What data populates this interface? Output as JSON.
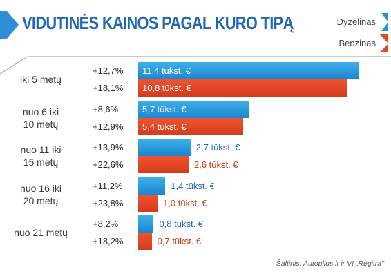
{
  "chart_data": {
    "type": "bar",
    "orientation": "horizontal",
    "title": "VIDUTINĖS KAINOS PAGAL KURO TIPĄ",
    "categories": [
      "iki 5 metų",
      "nuo 6 iki\n10 metų",
      "nuo 11 iki\n15 metų",
      "nuo 16 iki\n20 metų",
      "nuo 21 metų"
    ],
    "series": [
      {
        "name": "Dyzelinas",
        "color": "#1b86cf",
        "values": [
          11.4,
          5.7,
          2.7,
          1.4,
          0.8
        ],
        "value_labels": [
          "11,4 tūkst. €",
          "5,7 tūkst. €",
          "2,7 tūkst. €",
          "1,4 tūkst. €",
          "0,8 tūkst. €"
        ],
        "change_labels": [
          "+12,7%",
          "+8,6%",
          "+13,9%",
          "+11,2%",
          "+8,2%"
        ]
      },
      {
        "name": "Benzinas",
        "color": "#d63b1c",
        "values": [
          10.8,
          5.4,
          2.6,
          1.0,
          0.7
        ],
        "value_labels": [
          "10,8 tūkst. €",
          "5,4 tūkst. €",
          "2,6 tūkst. €",
          "1,0 tūkst. €",
          "0,7 tūkst. €"
        ],
        "change_labels": [
          "+18,1%",
          "+12,9%",
          "+22,6%",
          "+23,8%",
          "+18,2%"
        ]
      }
    ],
    "xlim": [
      0,
      11.4
    ],
    "legend": "top-right",
    "grid": false,
    "source": "Šaltinis: Autoplius.lt ir VĮ „Regitra\""
  },
  "colors": {
    "title": "#2167b5",
    "dyzelinas": "#1b86cf",
    "benzinas": "#d63b1c",
    "bracket": "#9a9a9a"
  }
}
